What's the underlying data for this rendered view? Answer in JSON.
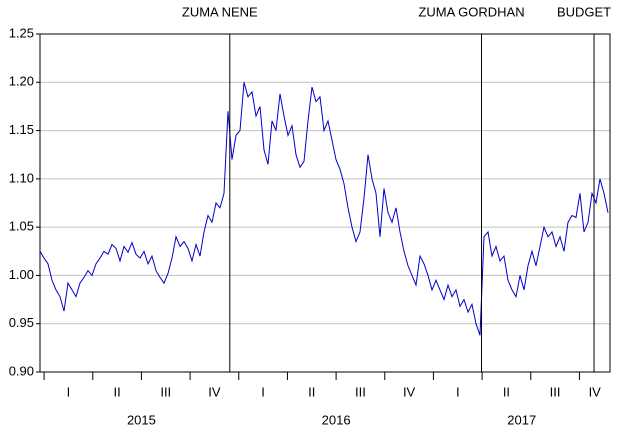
{
  "chart_data": {
    "type": "line",
    "xlim": [
      2014.979,
      2017.907
    ],
    "ylim": [
      0.9,
      1.25
    ],
    "yticks": [
      {
        "value": 0.9,
        "label": "0.90"
      },
      0.95,
      {
        "value": 1.0,
        "label": "1.00"
      },
      1.05,
      {
        "value": 1.1,
        "label": "1.10"
      },
      1.15,
      {
        "value": 1.2,
        "label": "1.20"
      },
      1.25
    ],
    "grid": true,
    "years": [
      2015,
      2016,
      2017
    ],
    "quarters": [
      "I",
      "II",
      "III",
      "IV"
    ],
    "events": [
      {
        "label": "ZUMA NENE",
        "x": 2015.954
      },
      {
        "label": "ZUMA GORDHAN",
        "x": 2017.247
      },
      {
        "label": "BUDGET",
        "x": 2017.825
      }
    ],
    "series": [
      {
        "color": "#0000cc",
        "values": [
          1.025,
          1.018,
          1.012,
          0.995,
          0.985,
          0.978,
          0.963,
          0.992,
          0.985,
          0.978,
          0.992,
          0.998,
          1.005,
          1.0,
          1.012,
          1.018,
          1.025,
          1.022,
          1.032,
          1.028,
          1.015,
          1.03,
          1.024,
          1.034,
          1.022,
          1.018,
          1.025,
          1.012,
          1.02,
          1.005,
          0.998,
          0.992,
          1.002,
          1.018,
          1.04,
          1.03,
          1.035,
          1.028,
          1.015,
          1.032,
          1.02,
          1.045,
          1.062,
          1.055,
          1.075,
          1.07,
          1.085,
          1.17,
          1.12,
          1.145,
          1.15,
          1.2,
          1.185,
          1.19,
          1.165,
          1.175,
          1.13,
          1.115,
          1.16,
          1.15,
          1.188,
          1.165,
          1.145,
          1.155,
          1.125,
          1.112,
          1.118,
          1.16,
          1.195,
          1.18,
          1.185,
          1.15,
          1.16,
          1.14,
          1.12,
          1.11,
          1.095,
          1.07,
          1.05,
          1.035,
          1.045,
          1.08,
          1.125,
          1.1,
          1.085,
          1.04,
          1.09,
          1.065,
          1.055,
          1.07,
          1.045,
          1.025,
          1.01,
          1.0,
          0.99,
          1.02,
          1.012,
          1.0,
          0.985,
          0.995,
          0.985,
          0.975,
          0.99,
          0.978,
          0.985,
          0.968,
          0.975,
          0.962,
          0.97,
          0.95,
          0.938,
          1.04,
          1.045,
          1.02,
          1.03,
          1.015,
          1.02,
          0.995,
          0.985,
          0.978,
          1.0,
          0.985,
          1.01,
          1.025,
          1.01,
          1.03,
          1.05,
          1.04,
          1.045,
          1.03,
          1.04,
          1.025,
          1.055,
          1.062,
          1.06,
          1.085,
          1.045,
          1.055,
          1.085,
          1.075,
          1.1,
          1.085,
          1.065
        ]
      }
    ]
  }
}
